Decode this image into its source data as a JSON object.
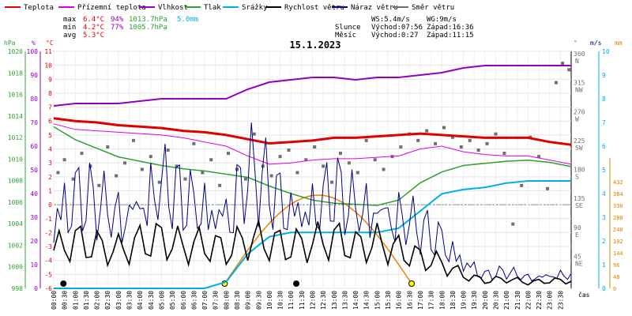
{
  "chart_data": {
    "type": "line",
    "title": "15.1.2023",
    "legend": [
      {
        "name": "Teplota",
        "color": "#e00000"
      },
      {
        "name": "Přízemní teplota",
        "color": "#e000e0"
      },
      {
        "name": "Vlhkost",
        "color": "#9000c0"
      },
      {
        "name": "Tlak",
        "color": "#30a030"
      },
      {
        "name": "Srážky",
        "color": "#00b0e0"
      },
      {
        "name": "Rychlost větru",
        "color": "#000000"
      },
      {
        "name": "Náraz větru",
        "color": "#000080"
      },
      {
        "name": "Směr větru",
        "color": "#707070"
      }
    ],
    "stats": {
      "max_label": "max",
      "min_label": "min",
      "avg_label": "avg",
      "max_temp": "6.4°C",
      "max_hum": "94%",
      "max_press": "1013.7hPa",
      "max_rain": "5.0mm",
      "min_temp": "4.2°C",
      "min_hum": "77%",
      "min_press": "1005.7hPa",
      "avg_temp": "5.3°C",
      "ws": "WS:5.4m/s",
      "wg": "WG:9m/s",
      "sun_label": "Slunce",
      "sun_rise": "Východ:07:56",
      "sun_set": "Západ:16:36",
      "moon_label": "Měsíc",
      "moon_rise": "Východ:0:27",
      "moon_set": "Západ:11:15"
    },
    "axis_units": {
      "hpa": "hPa",
      "pct": "%",
      "degc": "°C",
      "deg": "°",
      "ms": "m/s",
      "mm": "mm",
      "time": "čas"
    },
    "pressure_ticks": [
      "1020",
      "1018",
      "1016",
      "1014",
      "1012",
      "1010",
      "1008",
      "1006",
      "1004",
      "1002",
      "1000",
      "998"
    ],
    "humidity_ticks": [
      "100",
      "90",
      "80",
      "70",
      "60",
      "50",
      "40",
      "30",
      "20",
      "10",
      "0"
    ],
    "temp_ticks": [
      "11",
      "10",
      "9",
      "8",
      "7",
      "6",
      "5",
      "4",
      "3",
      "2",
      "1",
      "0",
      "-1",
      "-2",
      "-3",
      "-4",
      "-5",
      "-6"
    ],
    "dir_ticks": [
      {
        "deg": "360",
        "dir": "N"
      },
      {
        "deg": "315",
        "dir": "NW"
      },
      {
        "deg": "270",
        "dir": "W"
      },
      {
        "deg": "225",
        "dir": "SW"
      },
      {
        "deg": "180",
        "dir": "S"
      },
      {
        "deg": "135",
        "dir": "SE"
      },
      {
        "deg": "90",
        "dir": "E"
      },
      {
        "deg": "45",
        "dir": "NE"
      }
    ],
    "wind_ticks": [
      "10",
      "9",
      "8",
      "7",
      "6",
      "5",
      "4",
      "3",
      "2",
      "1",
      "0"
    ],
    "rain_ticks": [
      "432",
      "384",
      "336",
      "288",
      "240",
      "192",
      "144",
      "96",
      "48",
      "0"
    ],
    "time_ticks": [
      "00:00",
      "00:30",
      "01:00",
      "01:30",
      "02:00",
      "02:30",
      "03:00",
      "03:30",
      "04:00",
      "04:30",
      "05:00",
      "05:30",
      "06:00",
      "06:30",
      "07:00",
      "07:30",
      "08:00",
      "08:30",
      "09:00",
      "09:30",
      "10:00",
      "10:30",
      "11:00",
      "11:30",
      "12:00",
      "12:30",
      "13:00",
      "13:30",
      "14:00",
      "14:30",
      "15:00",
      "15:30",
      "16:00",
      "16:30",
      "17:00",
      "17:30",
      "18:00",
      "18:30",
      "19:00",
      "19:30",
      "20:00",
      "20:30",
      "21:00",
      "21:30",
      "22:00",
      "22:30",
      "23:00",
      "23:30"
    ],
    "hours": [
      0,
      1,
      2,
      3,
      4,
      5,
      6,
      7,
      8,
      9,
      10,
      11,
      12,
      13,
      14,
      15,
      16,
      17,
      18,
      19,
      20,
      21,
      22,
      23,
      24
    ],
    "temperature": [
      6.2,
      6.0,
      5.9,
      5.7,
      5.6,
      5.5,
      5.3,
      5.2,
      5.0,
      4.7,
      4.4,
      4.5,
      4.6,
      4.8,
      4.8,
      4.9,
      5.0,
      5.1,
      5.0,
      4.9,
      4.8,
      4.8,
      4.8,
      4.5,
      4.3
    ],
    "ground_temperature": [
      5.8,
      5.4,
      5.3,
      5.2,
      5.1,
      5.0,
      4.8,
      4.5,
      4.2,
      3.5,
      2.9,
      3.0,
      3.2,
      3.3,
      3.3,
      3.4,
      3.5,
      4.0,
      4.2,
      3.8,
      3.6,
      3.5,
      3.5,
      3.2,
      2.9
    ],
    "humidity": [
      77,
      78,
      78,
      78,
      79,
      80,
      80,
      80,
      80,
      84,
      87,
      88,
      89,
      89,
      88,
      89,
      89,
      90,
      91,
      93,
      94,
      94,
      94,
      94,
      94
    ],
    "pressure": [
      1013.0,
      1011.8,
      1011.0,
      1010.2,
      1009.8,
      1009.4,
      1009.1,
      1008.9,
      1008.6,
      1008.3,
      1007.5,
      1006.8,
      1006.2,
      1005.9,
      1005.8,
      1005.7,
      1006.2,
      1007.8,
      1008.8,
      1009.4,
      1009.6,
      1009.8,
      1009.9,
      1009.7,
      1009.3
    ],
    "wind_direction_scatter": [
      [
        0.2,
        180
      ],
      [
        0.5,
        200
      ],
      [
        0.9,
        170
      ],
      [
        1.3,
        210
      ],
      [
        1.7,
        190
      ],
      [
        2.1,
        160
      ],
      [
        2.5,
        220
      ],
      [
        2.9,
        175
      ],
      [
        3.3,
        195
      ],
      [
        3.7,
        230
      ],
      [
        4.1,
        185
      ],
      [
        4.5,
        205
      ],
      [
        4.9,
        165
      ],
      [
        5.3,
        215
      ],
      [
        5.7,
        190
      ],
      [
        6.1,
        170
      ],
      [
        6.5,
        225
      ],
      [
        6.9,
        180
      ],
      [
        7.3,
        200
      ],
      [
        7.7,
        160
      ],
      [
        8.1,
        210
      ],
      [
        8.5,
        185
      ],
      [
        8.9,
        170
      ],
      [
        9.3,
        240
      ],
      [
        9.7,
        190
      ],
      [
        10.1,
        175
      ],
      [
        10.5,
        205
      ],
      [
        10.9,
        215
      ],
      [
        11.3,
        180
      ],
      [
        11.7,
        200
      ],
      [
        12.1,
        220
      ],
      [
        12.5,
        190
      ],
      [
        12.9,
        165
      ],
      [
        13.3,
        210
      ],
      [
        13.7,
        195
      ],
      [
        14.1,
        180
      ],
      [
        14.5,
        230
      ],
      [
        14.9,
        200
      ],
      [
        15.3,
        185
      ],
      [
        15.7,
        205
      ],
      [
        16.1,
        220
      ],
      [
        16.5,
        240
      ],
      [
        16.9,
        230
      ],
      [
        17.3,
        245
      ],
      [
        17.7,
        225
      ],
      [
        18.1,
        250
      ],
      [
        18.5,
        235
      ],
      [
        18.9,
        220
      ],
      [
        19.3,
        230
      ],
      [
        19.7,
        215
      ],
      [
        20.1,
        225
      ],
      [
        20.5,
        240
      ],
      [
        20.9,
        210
      ],
      [
        21.3,
        100
      ],
      [
        21.7,
        160
      ],
      [
        22.1,
        235
      ],
      [
        22.5,
        205
      ],
      [
        22.9,
        155
      ],
      [
        23.3,
        320
      ],
      [
        23.6,
        350
      ],
      [
        23.9,
        340
      ]
    ],
    "wind_speed": [
      2.0,
      2.5,
      2.2,
      2.0,
      2.4,
      2.6,
      2.2,
      2.3,
      2.0,
      2.6,
      2.4,
      2.2,
      2.4,
      2.6,
      2.2,
      2.4,
      2.0,
      1.6,
      1.3,
      0.7,
      0.4,
      0.5,
      0.3,
      0.4,
      0.4
    ],
    "wind_gust": [
      3.5,
      4.2,
      3.6,
      3.3,
      4.0,
      4.5,
      3.8,
      3.7,
      3.5,
      5.0,
      4.4,
      3.8,
      3.6,
      4.2,
      3.5,
      3.8,
      3.2,
      2.5,
      2.2,
      1.3,
      0.6,
      0.7,
      0.5,
      0.6,
      0.6
    ],
    "rain_cumulative_mm": [
      0,
      0,
      0,
      0,
      0,
      0,
      0,
      0,
      0.3,
      1.6,
      2.4,
      2.6,
      2.6,
      2.6,
      2.6,
      2.6,
      2.8,
      3.6,
      4.4,
      4.6,
      4.7,
      4.9,
      5.0,
      5.0,
      5.0
    ],
    "sun_arc": {
      "rise_h": 7.93,
      "set_h": 16.6
    },
    "xlabel": "čas"
  }
}
